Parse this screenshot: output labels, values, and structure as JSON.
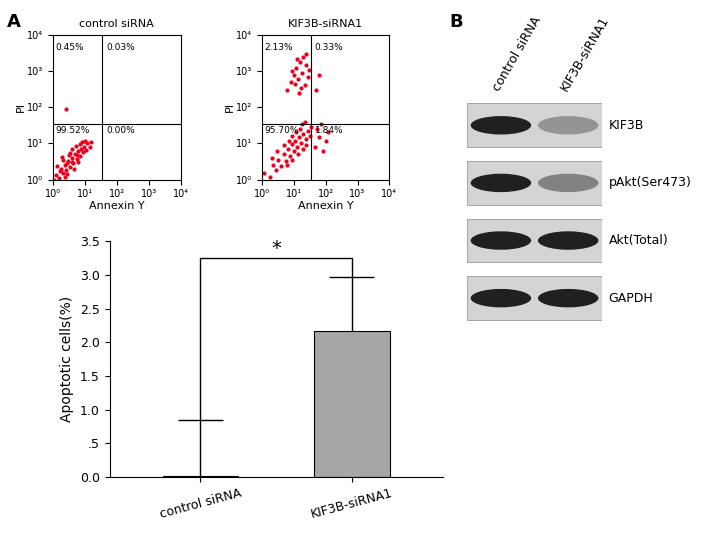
{
  "panel_labels": [
    "A",
    "B"
  ],
  "chart_data": [
    {
      "type": "scatter",
      "title": "control siRNA",
      "x_label": "Annexin Y",
      "y_label": "PI",
      "log": true,
      "xlim": [
        1,
        10000
      ],
      "ylim": [
        1,
        10000
      ],
      "xticks": [
        {
          "value": 1,
          "label": "10⁰"
        },
        {
          "value": 10,
          "label": "10¹"
        },
        {
          "value": 100,
          "label": "10²"
        },
        {
          "value": 1000,
          "label": "10³"
        },
        {
          "value": 10000,
          "label": "10⁴"
        }
      ],
      "yticks": [
        {
          "value": 1,
          "label": "10⁰"
        },
        {
          "value": 10,
          "label": "10¹"
        },
        {
          "value": 100,
          "label": "10²"
        },
        {
          "value": 1000,
          "label": "10³"
        },
        {
          "value": 10000,
          "label": "10⁴"
        }
      ],
      "quadrant": {
        "x": 35,
        "y": 35
      },
      "quadrant_labels": {
        "upper_left": "0.45%",
        "upper_right": "0.03%",
        "lower_left": "99.52%",
        "lower_right": "0.00%"
      },
      "color": "#e8001c",
      "x": [
        1.2,
        1.5,
        1.8,
        2.0,
        2.3,
        2.6,
        3.0,
        3.3,
        3.8,
        4.2,
        4.8,
        5.5,
        6.0,
        6.8,
        7.5,
        8.5,
        9.5,
        11,
        1.3,
        2.1,
        2.8,
        3.5,
        4.5,
        5.2,
        6.2,
        7.0,
        1.6,
        2.4,
        3.2,
        4.0,
        12,
        14,
        1.1,
        2.7,
        5.8,
        8.0,
        10,
        3.9,
        16,
        1.9,
        2.5
      ],
      "values": [
        1.3,
        1.1,
        2.0,
        1.5,
        2.6,
        1.8,
        3.2,
        2.2,
        4.0,
        2.9,
        5.0,
        3.6,
        6.2,
        4.5,
        7.0,
        5.8,
        8.0,
        6.5,
        2.4,
        3.5,
        1.4,
        5.5,
        1.9,
        8.5,
        3.0,
        9.5,
        1.7,
        1.2,
        4.8,
        6.8,
        10,
        8,
        1.0,
        2.9,
        4.8,
        11,
        12,
        3.1,
        11,
        4.2,
        90
      ]
    },
    {
      "type": "scatter",
      "title": "KIF3B-siRNA1",
      "x_label": "Annexin Y",
      "y_label": "PI",
      "log": true,
      "xlim": [
        1,
        10000
      ],
      "ylim": [
        1,
        10000
      ],
      "xticks": [
        {
          "value": 1,
          "label": "10⁰"
        },
        {
          "value": 10,
          "label": "10¹"
        },
        {
          "value": 100,
          "label": "10²"
        },
        {
          "value": 1000,
          "label": "10³"
        },
        {
          "value": 10000,
          "label": "10⁴"
        }
      ],
      "yticks": [
        {
          "value": 1,
          "label": "10⁰"
        },
        {
          "value": 10,
          "label": "10¹"
        },
        {
          "value": 100,
          "label": "10²"
        },
        {
          "value": 1000,
          "label": "10³"
        },
        {
          "value": 10000,
          "label": "10⁴"
        }
      ],
      "quadrant": {
        "x": 35,
        "y": 35
      },
      "quadrant_labels": {
        "upper_left": "2.13%",
        "upper_right": "0.33%",
        "lower_left": "95.70%",
        "lower_right": "1.84%"
      },
      "color": "#e8001c",
      "x": [
        1.2,
        1.8,
        2.2,
        2.8,
        3.3,
        4,
        4.8,
        5.5,
        6.5,
        7.5,
        8.5,
        10,
        11,
        13,
        15,
        17,
        20,
        24,
        28,
        32,
        3,
        5,
        7,
        9,
        12,
        16,
        2,
        6,
        9,
        14,
        19,
        25,
        35,
        18,
        22,
        6,
        8,
        10,
        12,
        14,
        16,
        18,
        20,
        22,
        25,
        28,
        9,
        13,
        17,
        11,
        24,
        30,
        15,
        45,
        60,
        80,
        55,
        100,
        70,
        120,
        50,
        60
      ],
      "values": [
        1.5,
        1.2,
        2.5,
        1.8,
        3.5,
        2.4,
        5,
        3.2,
        7,
        4.5,
        9.5,
        6,
        12,
        8,
        15,
        10,
        18,
        13,
        22,
        16,
        6,
        9,
        12,
        16,
        20,
        25,
        4,
        2.5,
        3.5,
        5,
        7,
        9,
        28,
        35,
        40,
        300,
        500,
        800,
        1200,
        600,
        1800,
        900,
        2500,
        400,
        1500,
        700,
        1000,
        2200,
        350,
        450,
        3000,
        1100,
        250,
        8,
        15,
        6,
        25,
        12,
        35,
        20,
        300,
        800
      ]
    },
    {
      "type": "bar",
      "y_label": "Apoptotic cells(%)",
      "categories": [
        "control siRNA",
        "KIF3B-siRNA1"
      ],
      "values": [
        0.02,
        2.17
      ],
      "error": [
        0.82,
        0.8
      ],
      "colors": [
        "#ffffff",
        "#a6a6a6"
      ],
      "ylim": [
        0.0,
        3.5
      ],
      "yticks": [
        0.0,
        {
          "value": 0.5,
          "label": ".5"
        },
        1.0,
        1.5,
        2.0,
        2.5,
        3.0,
        3.5
      ],
      "significance": {
        "label": "*",
        "between": [
          0,
          1
        ]
      }
    }
  ],
  "blot": {
    "lanes": [
      "control siRNA",
      "KIF3B-siRNA1"
    ],
    "rows": [
      {
        "label": "KIF3B",
        "intensity": [
          1.0,
          0.35
        ]
      },
      {
        "label": "pAkt(Ser473)",
        "intensity": [
          1.0,
          0.45
        ]
      },
      {
        "label": "Akt(Total)",
        "intensity": [
          1.0,
          1.0
        ]
      },
      {
        "label": "GAPDH",
        "intensity": [
          1.0,
          1.0
        ]
      }
    ]
  }
}
